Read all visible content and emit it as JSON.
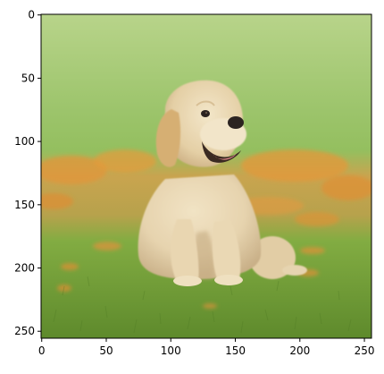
{
  "image": {
    "subject": "golden retriever puppy",
    "colors": {
      "sky_green_light": "#b8d48a",
      "sky_green": "#8fbd5e",
      "field_green": "#78a83e",
      "grass_dark": "#5e8a2c",
      "flowers_orange": "#e89a3a",
      "fur_cream": "#e6d3ae",
      "fur_shadow": "#c9b088",
      "fur_light": "#f1e3c4",
      "ear_tan": "#d9b479",
      "nose_dark": "#2b2320",
      "tongue_pink": "#e58a8f"
    }
  },
  "chart_data": {
    "type": "image",
    "x_ticks": [
      0,
      50,
      100,
      150,
      200,
      250
    ],
    "y_ticks": [
      0,
      50,
      100,
      150,
      200,
      250
    ],
    "xlim": [
      -0.5,
      255.5
    ],
    "ylim": [
      255.5,
      -0.5
    ],
    "x_tick_labels": [
      "0",
      "50",
      "100",
      "150",
      "200",
      "250"
    ],
    "y_tick_labels": [
      "0",
      "50",
      "100",
      "150",
      "200",
      "250"
    ],
    "grid": false
  }
}
